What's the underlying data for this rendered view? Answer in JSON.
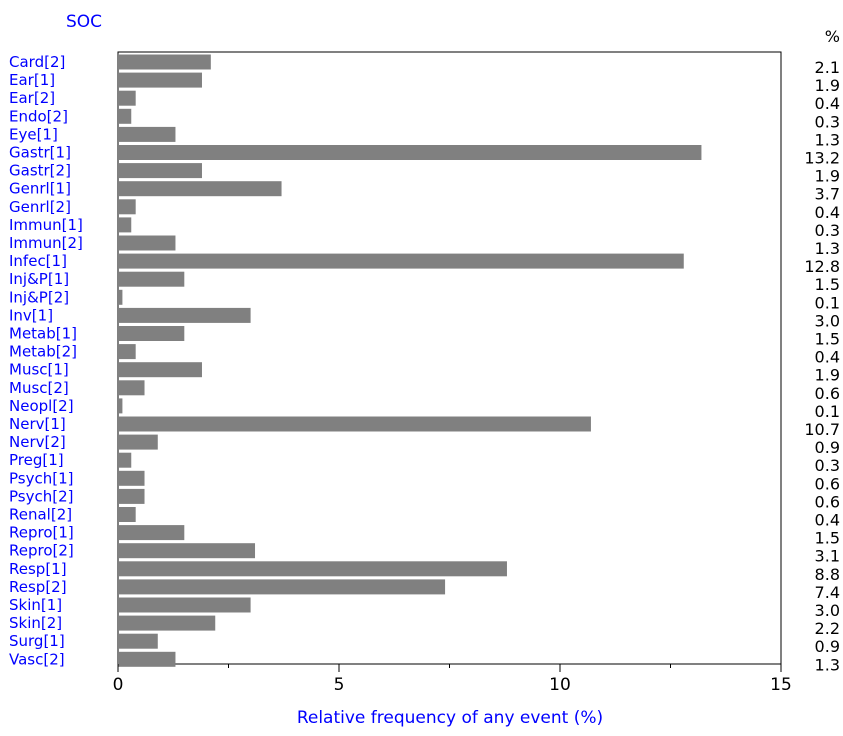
{
  "chart_data": {
    "type": "bar",
    "orientation": "horizontal",
    "category_axis_title": "SOC",
    "value_column_header": "%",
    "xlabel": "Relative frequency of any event (%)",
    "xlim": [
      0,
      15
    ],
    "xticks": [
      0,
      5,
      10,
      15
    ],
    "grid": false,
    "legend": "none",
    "categories": [
      "Card[2]",
      "Ear[1]",
      "Ear[2]",
      "Endo[2]",
      "Eye[1]",
      "Gastr[1]",
      "Gastr[2]",
      "Genrl[1]",
      "Genrl[2]",
      "Immun[1]",
      "Immun[2]",
      "Infec[1]",
      "Inj&P[1]",
      "Inj&P[2]",
      "Inv[1]",
      "Metab[1]",
      "Metab[2]",
      "Musc[1]",
      "Musc[2]",
      "Neopl[2]",
      "Nerv[1]",
      "Nerv[2]",
      "Preg[1]",
      "Psych[1]",
      "Psych[2]",
      "Renal[2]",
      "Repro[1]",
      "Repro[2]",
      "Resp[1]",
      "Resp[2]",
      "Skin[1]",
      "Skin[2]",
      "Surg[1]",
      "Vasc[2]"
    ],
    "values": [
      2.1,
      1.9,
      0.4,
      0.3,
      1.3,
      13.2,
      1.9,
      3.7,
      0.4,
      0.3,
      1.3,
      12.8,
      1.5,
      0.1,
      3.0,
      1.5,
      0.4,
      1.9,
      0.6,
      0.1,
      10.7,
      0.9,
      0.3,
      0.6,
      0.6,
      0.4,
      1.5,
      3.1,
      8.8,
      7.4,
      3.0,
      2.2,
      0.9,
      1.3
    ],
    "value_labels": [
      "2.1",
      "1.9",
      "0.4",
      "0.3",
      "1.3",
      "13.2",
      "1.9",
      "3.7",
      "0.4",
      "0.3",
      "1.3",
      "12.8",
      "1.5",
      "0.1",
      "3.0",
      "1.5",
      "0.4",
      "1.9",
      "0.6",
      "0.1",
      "10.7",
      "0.9",
      "0.3",
      "0.6",
      "0.6",
      "0.4",
      "1.5",
      "3.1",
      "8.8",
      "7.4",
      "3.0",
      "2.2",
      "0.9",
      "1.3"
    ],
    "colors": {
      "bar": "#808080",
      "label": "#0000ff",
      "axis": "#000000"
    }
  }
}
